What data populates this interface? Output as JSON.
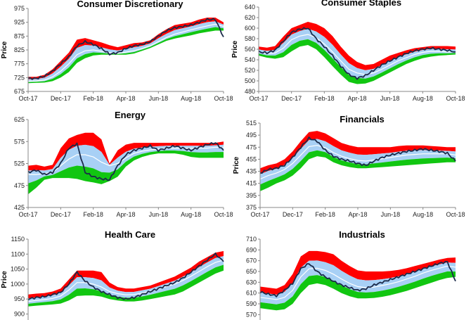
{
  "colors": {
    "upper_band": "#ff0000",
    "inner_band": "#a8d0f5",
    "lower_band": "#11c611",
    "price_line": "#1b2a4a",
    "mid_line": "#ffffff"
  },
  "chart_data": [
    {
      "type": "area",
      "title": "Consumer Discretionary",
      "ylabel": "Price",
      "ylim": [
        675,
        975
      ],
      "yticks": [
        "675",
        "725",
        "775",
        "825",
        "875",
        "925",
        "975"
      ],
      "xticks": [
        "Oct-17",
        "Dec-17",
        "Feb-18",
        "Apr-18",
        "Jun-18",
        "Aug-18",
        "Oct-18"
      ],
      "grid": false,
      "series": [
        {
          "values": [
            722,
            722,
            730,
            748,
            775,
            800,
            840,
            855,
            845,
            830,
            810,
            815,
            830,
            840,
            845,
            855,
            875,
            895,
            905,
            910,
            915,
            925,
            935,
            935,
            872
          ]
        }
      ],
      "bands": {
        "upper": [
          728,
          728,
          735,
          755,
          785,
          815,
          862,
          868,
          860,
          852,
          842,
          835,
          842,
          850,
          852,
          860,
          882,
          900,
          915,
          920,
          925,
          935,
          942,
          942,
          925
        ],
        "mid": [
          712,
          713,
          716,
          728,
          748,
          775,
          808,
          822,
          825,
          820,
          815,
          813,
          817,
          822,
          830,
          840,
          855,
          870,
          882,
          890,
          898,
          905,
          912,
          918,
          910
        ],
        "lower": [
          705,
          706,
          707,
          712,
          725,
          745,
          778,
          795,
          805,
          808,
          808,
          808,
          808,
          812,
          822,
          832,
          845,
          858,
          866,
          872,
          878,
          885,
          890,
          895,
          895
        ]
      }
    },
    {
      "type": "area",
      "title": "Consumer Staples",
      "ylabel": "Price",
      "ylim": [
        480,
        640
      ],
      "yticks": [
        "480",
        "500",
        "520",
        "540",
        "560",
        "580",
        "600",
        "620",
        "640"
      ],
      "xticks": [
        "Oct-17",
        "Dec-17",
        "Feb-18",
        "Apr-18",
        "Jun-18",
        "Aug-18",
        "Oct-18"
      ],
      "grid": false,
      "series": [
        {
          "values": [
            555,
            553,
            558,
            575,
            592,
            598,
            600,
            580,
            565,
            548,
            528,
            512,
            505,
            510,
            520,
            530,
            538,
            545,
            552,
            557,
            560,
            562,
            560,
            558,
            555
          ]
        }
      ],
      "bands": {
        "upper": [
          565,
          563,
          566,
          584,
          600,
          606,
          612,
          608,
          600,
          585,
          565,
          548,
          536,
          530,
          532,
          540,
          548,
          553,
          558,
          562,
          564,
          566,
          566,
          566,
          565
        ],
        "mid": [
          555,
          552,
          553,
          562,
          578,
          585,
          588,
          582,
          570,
          555,
          538,
          522,
          515,
          512,
          515,
          522,
          530,
          538,
          544,
          550,
          554,
          556,
          556,
          555,
          555
        ],
        "lower": [
          548,
          544,
          542,
          545,
          556,
          565,
          568,
          560,
          545,
          528,
          512,
          498,
          494,
          495,
          500,
          508,
          516,
          524,
          532,
          538,
          543,
          546,
          548,
          549,
          550
        ]
      }
    },
    {
      "type": "area",
      "title": "Energy",
      "ylabel": "",
      "ylim": [
        425,
        625
      ],
      "yticks": [
        "425",
        "475",
        "525",
        "575",
        "625"
      ],
      "xticks": [
        "Oct-17",
        "Dec-17",
        "Feb-18",
        "Apr-18",
        "Jun-18",
        "Aug-18",
        "Oct-18"
      ],
      "grid": false,
      "series": [
        {
          "values": [
            505,
            510,
            500,
            505,
            525,
            560,
            570,
            505,
            495,
            490,
            488,
            520,
            545,
            555,
            560,
            565,
            555,
            560,
            565,
            560,
            555,
            562,
            568,
            572,
            555
          ]
        }
      ],
      "bands": {
        "upper": [
          520,
          522,
          518,
          522,
          560,
          582,
          590,
          595,
          595,
          580,
          525,
          555,
          568,
          572,
          572,
          572,
          572,
          572,
          572,
          572,
          572,
          572,
          572,
          572,
          575
        ],
        "mid": [
          500,
          500,
          502,
          505,
          520,
          535,
          545,
          545,
          540,
          528,
          520,
          525,
          538,
          548,
          553,
          556,
          558,
          560,
          560,
          560,
          560,
          560,
          560,
          562,
          562
        ],
        "lower": [
          455,
          470,
          488,
          492,
          492,
          492,
          490,
          485,
          482,
          478,
          485,
          495,
          518,
          532,
          540,
          545,
          548,
          548,
          548,
          545,
          540,
          538,
          538,
          538,
          538
        ]
      }
    },
    {
      "type": "area",
      "title": "Financials",
      "ylabel": "Price",
      "ylim": [
        375,
        515
      ],
      "yticks": [
        "375",
        "395",
        "415",
        "435",
        "455",
        "475",
        "495",
        "515"
      ],
      "xticks": [
        "Oct-17",
        "Dec-17",
        "Feb-18",
        "Apr-18",
        "Jun-18",
        "Aug-18",
        "Oct-18"
      ],
      "grid": false,
      "series": [
        {
          "values": [
            432,
            438,
            440,
            445,
            458,
            475,
            490,
            485,
            470,
            460,
            455,
            452,
            448,
            445,
            452,
            458,
            462,
            465,
            468,
            470,
            472,
            470,
            468,
            465,
            452
          ]
        }
      ],
      "bands": {
        "upper": [
          440,
          445,
          448,
          455,
          468,
          485,
          500,
          502,
          498,
          490,
          482,
          478,
          475,
          475,
          475,
          475,
          475,
          477,
          478,
          478,
          478,
          477,
          476,
          475,
          475
        ],
        "mid": [
          422,
          428,
          432,
          438,
          448,
          462,
          476,
          478,
          474,
          466,
          460,
          456,
          453,
          452,
          454,
          456,
          458,
          460,
          462,
          463,
          464,
          464,
          464,
          464,
          462
        ],
        "lower": [
          402,
          408,
          415,
          420,
          428,
          440,
          455,
          460,
          458,
          450,
          445,
          442,
          440,
          440,
          441,
          442,
          443,
          444,
          445,
          446,
          447,
          448,
          449,
          450,
          450
        ]
      }
    },
    {
      "type": "area",
      "title": "Health Care",
      "ylabel": "Price",
      "ylim": [
        880,
        1150
      ],
      "yticks": [
        "900",
        "950",
        "1000",
        "1050",
        "1100",
        "1150"
      ],
      "xticks": [],
      "grid": false,
      "series": [
        {
          "values": [
            950,
            955,
            958,
            965,
            972,
            1000,
            1040,
            1010,
            990,
            975,
            965,
            955,
            950,
            955,
            965,
            975,
            985,
            995,
            1005,
            1020,
            1040,
            1060,
            1080,
            1100,
            1075
          ]
        }
      ],
      "bands": {
        "upper": [
          965,
          968,
          970,
          975,
          985,
          1015,
          1045,
          1045,
          1045,
          1040,
          1005,
          990,
          985,
          985,
          990,
          995,
          1005,
          1015,
          1025,
          1040,
          1055,
          1075,
          1090,
          1105,
          1110
        ],
        "mid": [
          942,
          945,
          948,
          952,
          960,
          980,
          1005,
          1005,
          1000,
          990,
          975,
          968,
          964,
          965,
          970,
          976,
          984,
          992,
          1000,
          1012,
          1026,
          1042,
          1058,
          1072,
          1080
        ],
        "lower": [
          925,
          928,
          930,
          932,
          935,
          945,
          960,
          962,
          962,
          958,
          950,
          945,
          942,
          942,
          945,
          950,
          955,
          960,
          965,
          975,
          990,
          1005,
          1020,
          1035,
          1045
        ]
      }
    },
    {
      "type": "area",
      "title": "Industrials",
      "ylabel": "",
      "ylim": [
        560,
        710
      ],
      "yticks": [
        "570",
        "590",
        "610",
        "630",
        "650",
        "670",
        "690",
        "710"
      ],
      "xticks": [],
      "grid": false,
      "series": [
        {
          "values": [
            612,
            608,
            605,
            615,
            628,
            655,
            665,
            650,
            640,
            632,
            625,
            620,
            615,
            618,
            625,
            630,
            635,
            640,
            645,
            650,
            655,
            660,
            665,
            668,
            632
          ]
        }
      ],
      "bands": {
        "upper": [
          622,
          620,
          618,
          625,
          645,
          678,
          688,
          688,
          686,
          682,
          670,
          660,
          652,
          650,
          650,
          650,
          651,
          653,
          656,
          660,
          664,
          668,
          672,
          675,
          676
        ],
        "mid": [
          602,
          600,
          598,
          602,
          615,
          640,
          655,
          656,
          652,
          645,
          636,
          628,
          622,
          620,
          621,
          624,
          627,
          631,
          636,
          641,
          647,
          652,
          656,
          660,
          658
        ],
        "lower": [
          582,
          580,
          578,
          580,
          590,
          610,
          625,
          628,
          625,
          618,
          610,
          604,
          600,
          600,
          601,
          603,
          606,
          610,
          614,
          619,
          624,
          629,
          634,
          638,
          640
        ]
      }
    }
  ]
}
